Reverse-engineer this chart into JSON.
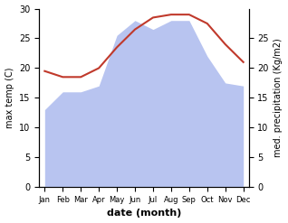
{
  "months": [
    "Jan",
    "Feb",
    "Mar",
    "Apr",
    "May",
    "Jun",
    "Jul",
    "Aug",
    "Sep",
    "Oct",
    "Nov",
    "Dec"
  ],
  "temperature": [
    19.5,
    18.5,
    18.5,
    20.0,
    23.5,
    26.5,
    28.5,
    29.0,
    29.0,
    27.5,
    24.0,
    21.0
  ],
  "precipitation": [
    13.0,
    16.0,
    16.0,
    17.0,
    25.5,
    28.0,
    26.5,
    28.0,
    28.0,
    22.0,
    17.5,
    17.0
  ],
  "temp_color": "#c0392b",
  "precip_color": "#b8c4f0",
  "temp_ylim": [
    0,
    30
  ],
  "precip_ylim": [
    0,
    30
  ],
  "temp_ylabel": "max temp (C)",
  "precip_ylabel": "med. precipitation (Kg/m2)",
  "xlabel": "date (month)",
  "left_yticks": [
    0,
    5,
    10,
    15,
    20,
    25,
    30
  ],
  "right_yticks": [
    0,
    5,
    10,
    15,
    20,
    25
  ],
  "background_color": "#ffffff"
}
